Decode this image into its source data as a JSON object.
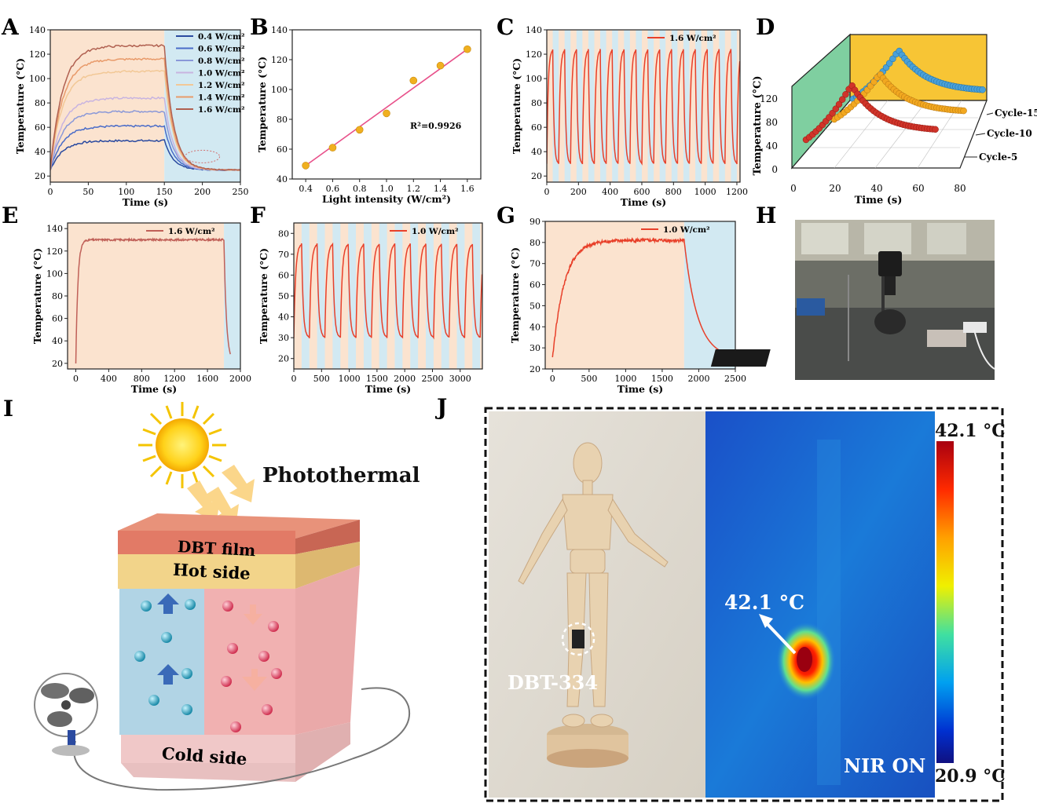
{
  "panel_labels": {
    "A": "A",
    "B": "B",
    "C": "C",
    "D": "D",
    "E": "E",
    "F": "F",
    "G": "G",
    "H": "H",
    "I": "I",
    "J": "J"
  },
  "colors": {
    "light_on": "#fbe3cf",
    "light_off": "#d2e9f2",
    "red_curve": "#e8402a",
    "pink_line": "#e8508a",
    "gold": "#f0b020"
  },
  "chart_data": [
    {
      "id": "A",
      "type": "line",
      "xlabel": "Time (s)",
      "ylabel": "Temperature (°C)",
      "xlim": [
        0,
        250
      ],
      "ylim": [
        15,
        140
      ],
      "xticks": [
        0,
        50,
        100,
        150,
        200,
        250
      ],
      "yticks": [
        20,
        40,
        60,
        80,
        100,
        120,
        140
      ],
      "light_on_until": 150,
      "series": [
        {
          "name": "0.4 W/cm²",
          "plateau": 49,
          "color": "#2a4aa0"
        },
        {
          "name": "0.6 W/cm²",
          "plateau": 61,
          "color": "#4a6cc8"
        },
        {
          "name": "0.8 W/cm²",
          "plateau": 73,
          "color": "#8a98d8"
        },
        {
          "name": "1.0 W/cm²",
          "plateau": 84,
          "color": "#c8b4e0"
        },
        {
          "name": "1.2 W/cm²",
          "plateau": 106,
          "color": "#f2c896"
        },
        {
          "name": "1.4 W/cm²",
          "plateau": 116,
          "color": "#e89a6a"
        },
        {
          "name": "1.6 W/cm²",
          "plateau": 127,
          "color": "#b06050"
        }
      ]
    },
    {
      "id": "B",
      "type": "scatter",
      "xlabel": "Light intensity (W/cm²)",
      "ylabel": "Temperature (°C)",
      "xlim": [
        0.3,
        1.7
      ],
      "ylim": [
        40,
        140
      ],
      "xticks": [
        0.4,
        0.6,
        0.8,
        1.0,
        1.2,
        1.4,
        1.6
      ],
      "yticks": [
        40,
        60,
        80,
        100,
        120,
        140
      ],
      "x": [
        0.4,
        0.6,
        0.8,
        1.0,
        1.2,
        1.4,
        1.6
      ],
      "y": [
        49,
        61,
        73,
        84,
        106,
        116,
        127
      ],
      "fit": {
        "x0": 0.4,
        "y0": 49,
        "x1": 1.6,
        "y1": 127
      },
      "annotation": "R²=0.9926"
    },
    {
      "id": "C",
      "type": "line",
      "xlabel": "Time (s)",
      "ylabel": "Temperature (°C)",
      "xlim": [
        0,
        1220
      ],
      "ylim": [
        15,
        140
      ],
      "xticks": [
        0,
        200,
        400,
        600,
        800,
        1000,
        1200
      ],
      "yticks": [
        20,
        40,
        60,
        80,
        100,
        120,
        140
      ],
      "legend": "1.6 W/cm²",
      "cycles": 16,
      "period": 75,
      "min": 30,
      "max": 124
    },
    {
      "id": "D",
      "type": "scatter3d",
      "xlabel": "Time (s)",
      "ylabel": "Temperature (°C)",
      "xticks": [
        0,
        20,
        40,
        60,
        80
      ],
      "yticks": [
        0,
        40,
        80,
        120
      ],
      "series": [
        "Cycle-5",
        "Cycle-10",
        "Cycle-15"
      ]
    },
    {
      "id": "E",
      "type": "line",
      "xlabel": "Time (s)",
      "ylabel": "Temperature (°C)",
      "xlim": [
        -100,
        2000
      ],
      "ylim": [
        15,
        145
      ],
      "xticks": [
        0,
        400,
        800,
        1200,
        1600,
        2000
      ],
      "yticks": [
        20,
        40,
        60,
        80,
        100,
        120,
        140
      ],
      "legend": "1.6 W/cm²",
      "plateau": 130,
      "light_off_at": 1800,
      "end": 1880
    },
    {
      "id": "F",
      "type": "line",
      "xlabel": "Time (s)",
      "ylabel": "Temperature (°C)",
      "xlim": [
        0,
        3400
      ],
      "ylim": [
        15,
        85
      ],
      "xticks": [
        0,
        500,
        1000,
        1500,
        2000,
        2500,
        3000
      ],
      "yticks": [
        20,
        30,
        40,
        50,
        60,
        70,
        80
      ],
      "legend": "1.0 W/cm²",
      "cycles": 12,
      "period": 280,
      "min": 30,
      "max": 75
    },
    {
      "id": "G",
      "type": "line",
      "xlabel": "Time (s)",
      "ylabel": "Temperature (°C)",
      "xlim": [
        -100,
        2500
      ],
      "ylim": [
        20,
        90
      ],
      "xticks": [
        0,
        500,
        1000,
        1500,
        2000,
        2500
      ],
      "yticks": [
        20,
        30,
        40,
        50,
        60,
        70,
        80,
        90
      ],
      "legend": "1.0 W/cm²",
      "plateau": 81,
      "light_off_at": 1800,
      "end": 2400
    }
  ],
  "schematic": {
    "photothermal": "Photothermal",
    "dbt_film": "DBT film",
    "hot_side": "Hot side",
    "cold_side": "Cold side"
  },
  "thermal": {
    "sample_label": "DBT-334",
    "spot_temp": "42.1 °C",
    "scale_max": "42.1 °C",
    "scale_min": "20.9 °C",
    "status": "NIR ON"
  }
}
